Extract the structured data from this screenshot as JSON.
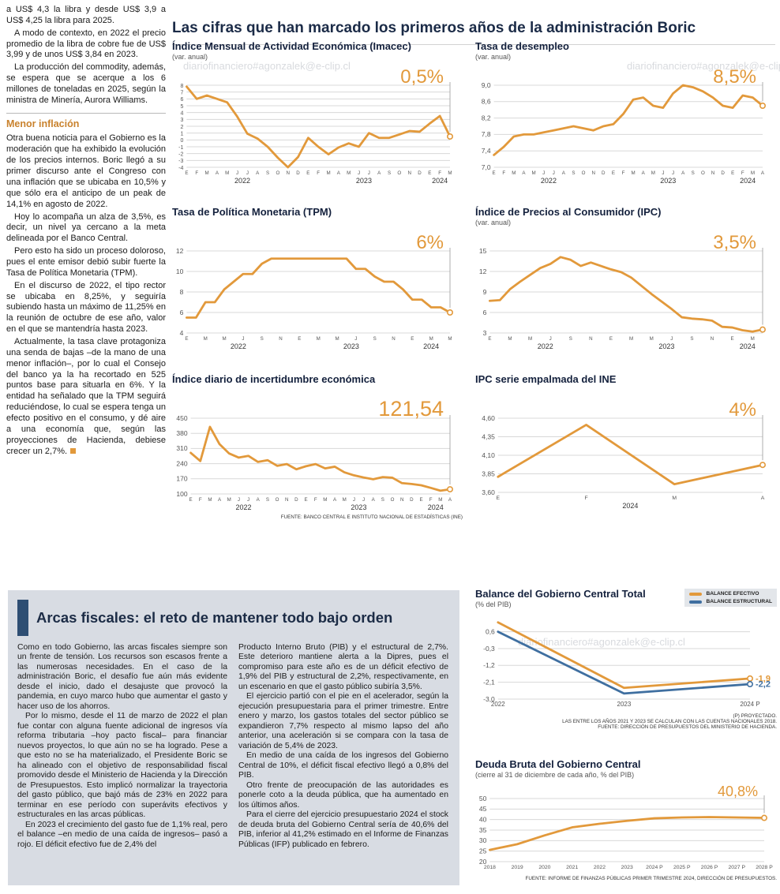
{
  "page": {
    "headline": "Las cifras que han marcado los primeros años de la administración Boric",
    "watermark": "diariofinanciero#agonzalek@e-clip.cl"
  },
  "left_column": {
    "intro_paragraphs": [
      "a US$ 4,3 la libra y desde US$ 3,9 a US$ 4,25 la libra para 2025.",
      "A modo de contexto, en 2022 el precio promedio de la libra de cobre fue de US$ 3,99 y de unos US$ 3,84 en 2023.",
      "La producción del commodity, además, se espera que se acerque a los 6 millones de toneladas en 2025, según la ministra de Minería, Aurora Williams."
    ],
    "subhead": "Menor inflación",
    "body_paragraphs": [
      "Otra buena noticia para el Gobierno es la moderación que ha exhibido la evolución de los precios internos. Boric llegó a su primer discurso ante el Congreso con una inflación que se ubicaba en 10,5% y que sólo era el anticipo de un peak de 14,1% en agosto de 2022.",
      "Hoy lo acompaña un alza de 3,5%, es decir, un nivel ya cercano a la meta delineada por el Banco Central.",
      "Pero esto ha sido un proceso doloroso, pues el ente emisor debió subir fuerte la Tasa de Política Monetaria (TPM).",
      "En el discurso de 2022, el tipo rector se ubicaba en 8,25%, y seguiría subiendo hasta un máximo de 11,25% en la reunión de octubre de ese año, valor en el que se mantendría hasta 2023.",
      "Actualmente, la tasa clave protagoniza una senda de bajas –de la mano de una menor inflación–, por lo cual el Consejo del banco ya la ha recortado en 525 puntos base para situarla en 6%. Y la entidad ha señalado que la TPM seguirá reduciéndose, lo cual se espera tenga un efecto positivo en el consumo, y dé aire a una economía que, según las proyecciones de Hacienda, debiese crecer un 2,7%."
    ]
  },
  "fiscal": {
    "headline": "Arcas fiscales: el reto de mantener todo bajo orden",
    "col1_paragraphs": [
      "Como en todo Gobierno, las arcas fiscales siempre son un frente de tensión. Los recursos son escasos frente a las numerosas necesidades. En el caso de la administración Boric, el desafío fue aún más evidente desde el inicio, dado el desajuste que provocó la pandemia, en cuyo marco hubo que aumentar el gasto y hacer uso de los ahorros.",
      "Por lo mismo, desde el 11 de marzo de 2022 el plan fue contar con alguna fuente adicional de ingresos vía reforma tributaria –hoy pacto fiscal– para financiar nuevos proyectos, lo que aún no se ha logrado. Pese a que esto no se ha materializado, el Presidente Boric se ha alineado con el objetivo de responsabilidad fiscal promovido desde el Ministerio de Hacienda y la Dirección de Presupuestos. Esto implicó normalizar la trayectoria del gasto público, que bajó más de 23% en 2022 para terminar en ese período con superávits efectivos y estructurales en las arcas públicas.",
      "En 2023 el crecimiento del gasto fue de 1,1% real, pero el balance –en medio de una caída de ingresos– pasó a rojo. El déficit efectivo fue de 2,4% del"
    ],
    "col2_paragraphs": [
      "Producto Interno Bruto (PIB) y el estructural de 2,7%. Este deterioro mantiene alerta a la Dipres, pues el compromiso para este año es de un déficit efectivo de 1,9% del PIB y estructural de 2,2%, respectivamente, en un escenario en que el gasto público subiría 3,5%.",
      "El ejercicio partió con el pie en el acelerador, según la ejecución presupuestaria para el primer trimestre. Entre enero y marzo, los gastos totales del sector público se expandieron 7,7% respecto al mismo lapso del año anterior, una aceleración si se compara con la tasa de variación de 5,4% de 2023.",
      "En medio de una caída de los ingresos del Gobierno Central de 10%, el déficit fiscal efectivo llegó a 0,8% del PIB.",
      "Otro frente de preocupación de las autoridades es ponerle coto a la deuda pública, que ha aumentado en los últimos años.",
      "Para el cierre del ejercicio presupuestario 2024 el stock de deuda bruta del Gobierno Central sería de 40,6% del PIB, inferior al 41,2% estimado en el Informe de Finanzas Públicas (IFP) publicado en febrero."
    ]
  },
  "chart_data": [
    {
      "type": "line",
      "title": "Índice Mensual de Actividad Económica (Imacec)",
      "subtitle": "(var. anual)",
      "annotation": "0,5%",
      "annotation_size": 24,
      "annotation_color": "#E2993B",
      "ylim": [
        -4,
        8
      ],
      "yticks": [
        {
          "v": 8,
          "label": "8"
        },
        {
          "v": 7,
          "label": "7"
        },
        {
          "v": 6,
          "label": "6"
        },
        {
          "v": 5,
          "label": "5"
        },
        {
          "v": 4,
          "label": "4"
        },
        {
          "v": 3,
          "label": "3"
        },
        {
          "v": 2,
          "label": "2"
        },
        {
          "v": 1,
          "label": "1"
        },
        {
          "v": 0,
          "label": "0"
        },
        {
          "v": -1,
          "label": "-1"
        },
        {
          "v": -2,
          "label": "-2"
        },
        {
          "v": -3,
          "label": "-3"
        },
        {
          "v": -4,
          "label": "-4"
        }
      ],
      "x_labels": [
        "E",
        "F",
        "M",
        "A",
        "M",
        "J",
        "J",
        "A",
        "S",
        "O",
        "N",
        "D",
        "E",
        "F",
        "M",
        "A",
        "M",
        "J",
        "J",
        "A",
        "S",
        "O",
        "N",
        "D",
        "E",
        "F",
        "M"
      ],
      "year_ticks": [
        {
          "label": "2022",
          "i": 5.5
        },
        {
          "label": "2023",
          "i": 17.5
        },
        {
          "label": "2024",
          "i": 25
        }
      ],
      "series": [
        {
          "name": "Imacec",
          "color": "#E2993B",
          "values": [
            7.8,
            6.0,
            6.5,
            6.0,
            5.5,
            3.4,
            0.9,
            0.2,
            -1.0,
            -2.6,
            -4.0,
            -2.5,
            0.3,
            -1.0,
            -2.1,
            -1.1,
            -0.5,
            -1.0,
            1.0,
            0.3,
            0.3,
            0.8,
            1.3,
            1.2,
            2.4,
            3.5,
            0.5
          ]
        }
      ]
    },
    {
      "type": "line",
      "title": "Tasa de desempleo",
      "subtitle": "(var. anual)",
      "annotation": "8,5%",
      "annotation_size": 24,
      "annotation_color": "#E2993B",
      "ylim": [
        7.0,
        9.0
      ],
      "yticks": [
        {
          "v": 9.0,
          "label": "9,0"
        },
        {
          "v": 8.6,
          "label": "8,6"
        },
        {
          "v": 8.2,
          "label": "8,2"
        },
        {
          "v": 7.8,
          "label": "7,8"
        },
        {
          "v": 7.4,
          "label": "7,4"
        },
        {
          "v": 7.0,
          "label": "7,0"
        }
      ],
      "x_labels": [
        "E",
        "F",
        "M",
        "A",
        "M",
        "J",
        "J",
        "A",
        "S",
        "O",
        "N",
        "D",
        "E",
        "F",
        "M",
        "A",
        "M",
        "J",
        "J",
        "A",
        "S",
        "O",
        "N",
        "D",
        "E",
        "F",
        "M",
        "A"
      ],
      "year_ticks": [
        {
          "label": "2022",
          "i": 5.5
        },
        {
          "label": "2023",
          "i": 17.5
        },
        {
          "label": "2024",
          "i": 25.5
        }
      ],
      "series": [
        {
          "name": "Desempleo",
          "color": "#E2993B",
          "values": [
            7.3,
            7.5,
            7.75,
            7.8,
            7.8,
            7.85,
            7.9,
            7.95,
            8.0,
            7.95,
            7.9,
            8.0,
            8.05,
            8.3,
            8.65,
            8.7,
            8.5,
            8.45,
            8.8,
            9.0,
            8.95,
            8.85,
            8.7,
            8.5,
            8.45,
            8.75,
            8.7,
            8.5
          ]
        }
      ]
    },
    {
      "type": "line",
      "title": "Tasa de Política Monetaria (TPM)",
      "subtitle": "",
      "annotation": "6%",
      "annotation_size": 24,
      "annotation_color": "#E2993B",
      "ylim": [
        4,
        12
      ],
      "yticks": [
        {
          "v": 12,
          "label": "12"
        },
        {
          "v": 10,
          "label": "10"
        },
        {
          "v": 8,
          "label": "8"
        },
        {
          "v": 6,
          "label": "6"
        },
        {
          "v": 4,
          "label": "4"
        }
      ],
      "x_labels": [
        "E",
        "",
        "M",
        "",
        "M",
        "",
        "J",
        "",
        "S",
        "",
        "N",
        "",
        "E",
        "",
        "M",
        "",
        "M",
        "",
        "J",
        "",
        "S",
        "",
        "N",
        "",
        "E",
        "",
        "M",
        "",
        "M"
      ],
      "year_ticks": [
        {
          "label": "2022",
          "i": 5.5
        },
        {
          "label": "2023",
          "i": 17.5
        },
        {
          "label": "2024",
          "i": 26
        }
      ],
      "series": [
        {
          "name": "TPM",
          "color": "#E2993B",
          "values": [
            5.5,
            5.5,
            7.0,
            7.0,
            8.25,
            9.0,
            9.75,
            9.75,
            10.75,
            11.25,
            11.25,
            11.25,
            11.25,
            11.25,
            11.25,
            11.25,
            11.25,
            11.25,
            10.25,
            10.25,
            9.5,
            9.0,
            9.0,
            8.25,
            7.25,
            7.25,
            6.5,
            6.5,
            6.0
          ]
        }
      ]
    },
    {
      "type": "line",
      "title": "Índice de Precios al Consumidor (IPC)",
      "subtitle": "(var. anual)",
      "annotation": "3,5%",
      "annotation_size": 24,
      "annotation_color": "#E2993B",
      "ylim": [
        3,
        15
      ],
      "yticks": [
        {
          "v": 15,
          "label": "15"
        },
        {
          "v": 12,
          "label": "12"
        },
        {
          "v": 9,
          "label": "9"
        },
        {
          "v": 6,
          "label": "6"
        },
        {
          "v": 3,
          "label": "3"
        }
      ],
      "x_labels": [
        "E",
        "",
        "M",
        "",
        "M",
        "",
        "J",
        "",
        "S",
        "",
        "N",
        "",
        "E",
        "",
        "M",
        "",
        "M",
        "",
        "J",
        "",
        "S",
        "",
        "N",
        "",
        "E",
        "",
        "M",
        ""
      ],
      "year_ticks": [
        {
          "label": "2022",
          "i": 5.5
        },
        {
          "label": "2023",
          "i": 17.5
        },
        {
          "label": "2024",
          "i": 25.5
        }
      ],
      "series": [
        {
          "name": "IPC",
          "color": "#E2993B",
          "values": [
            7.7,
            7.8,
            9.4,
            10.5,
            11.5,
            12.5,
            13.1,
            14.1,
            13.7,
            12.8,
            13.3,
            12.8,
            12.3,
            11.9,
            11.1,
            9.9,
            8.7,
            7.6,
            6.5,
            5.3,
            5.1,
            5.0,
            4.8,
            3.9,
            3.8,
            3.4,
            3.2,
            3.5
          ]
        }
      ]
    },
    {
      "type": "line",
      "title": "Índice diario de incertidumbre económica",
      "subtitle": "",
      "annotation": "121,54",
      "annotation_size": 27,
      "annotation_color": "#E2993B",
      "source": "FUENTE: BANCO CENTRAL E INSTITUTO NACIONAL DE ESTADÍSTICAS (INE)",
      "ylim": [
        100,
        450
      ],
      "yticks": [
        {
          "v": 450,
          "label": "450"
        },
        {
          "v": 380,
          "label": "380"
        },
        {
          "v": 310,
          "label": "310"
        },
        {
          "v": 240,
          "label": "240"
        },
        {
          "v": 170,
          "label": "170"
        },
        {
          "v": 100,
          "label": "100"
        }
      ],
      "x_labels": [
        "E",
        "F",
        "M",
        "A",
        "M",
        "J",
        "J",
        "A",
        "S",
        "O",
        "N",
        "D",
        "E",
        "F",
        "M",
        "A",
        "M",
        "J",
        "J",
        "A",
        "S",
        "O",
        "N",
        "D",
        "E",
        "F",
        "M",
        "A"
      ],
      "year_ticks": [
        {
          "label": "2022",
          "i": 5.5
        },
        {
          "label": "2023",
          "i": 17.5
        },
        {
          "label": "2024",
          "i": 25.5
        }
      ],
      "series": [
        {
          "name": "Incertidumbre",
          "color": "#E2993B",
          "values": [
            290,
            252,
            410,
            330,
            287,
            268,
            276,
            248,
            256,
            230,
            238,
            214,
            228,
            238,
            218,
            226,
            200,
            186,
            176,
            168,
            178,
            175,
            150,
            146,
            140,
            128,
            115,
            121.54
          ]
        }
      ]
    },
    {
      "type": "line",
      "title": "IPC serie empalmada del INE",
      "subtitle": "",
      "annotation": "4%",
      "annotation_size": 24,
      "annotation_color": "#E2993B",
      "ylim": [
        3.6,
        4.6
      ],
      "yticks": [
        {
          "v": 4.6,
          "label": "4,60"
        },
        {
          "v": 4.35,
          "label": "4,35"
        },
        {
          "v": 4.1,
          "label": "4,10"
        },
        {
          "v": 3.85,
          "label": "3,85"
        },
        {
          "v": 3.6,
          "label": "3,60"
        }
      ],
      "x_labels": [
        "E",
        "F",
        "M",
        "A"
      ],
      "year_ticks": [
        {
          "label": "2024",
          "i": 1.5
        }
      ],
      "series": [
        {
          "name": "IPC empalmado",
          "color": "#E2993B",
          "values": [
            3.81,
            4.51,
            3.71,
            3.97
          ]
        }
      ]
    },
    {
      "type": "line",
      "title": "Balance del Gobierno Central Total",
      "subtitle": "(% del PIB)",
      "sources": [
        "(P) PROYECTADO.",
        "LAS ENTRE LOS AÑOS 2021 Y 2023 SE CALCULAN  CON LAS CUENTAS NACIONALES 2018.",
        "FUENTE: DIRECCIÓN DE PRESUPUESTOS DEL MINISTERIO DE HACIENDA."
      ],
      "legend": [
        {
          "label": "BALANCE EFECTIVO",
          "color": "#E2993B"
        },
        {
          "label": "BALANCE ESTRUCTURAL",
          "color": "#3F6FA0"
        }
      ],
      "ylim": [
        -3.0,
        1.3
      ],
      "yticks": [
        {
          "v": 0.6,
          "label": "0,6"
        },
        {
          "v": -0.3,
          "label": "-0,3"
        },
        {
          "v": -1.2,
          "label": "-1,2"
        },
        {
          "v": -2.1,
          "label": "-2,1"
        },
        {
          "v": -3.0,
          "label": "-3,0"
        }
      ],
      "x_labels": [
        "2022",
        "2023",
        "2024 P"
      ],
      "year_ticks": [],
      "series": [
        {
          "name": "Balance efectivo",
          "color": "#E2993B",
          "end_label": "-1,9",
          "values": [
            1.1,
            -2.4,
            -1.9
          ]
        },
        {
          "name": "Balance estructural",
          "color": "#3F6FA0",
          "end_label": "-2,2",
          "values": [
            0.6,
            -2.7,
            -2.2
          ]
        }
      ]
    },
    {
      "type": "line",
      "title": "Deuda Bruta del Gobierno Central",
      "subtitle": "(cierre al 31 de diciembre de cada año, % del PIB)",
      "annotation": "40,8%",
      "annotation_size": 18,
      "annotation_color": "#E2993B",
      "source": "FUENTE: INFORME DE FINANZAS PÚBLICAS PRIMER TRIMESTRE 2024, DIRECCIÓN DE PRESUPUESTOS.",
      "ylim": [
        20,
        50
      ],
      "yticks": [
        {
          "v": 50,
          "label": "50"
        },
        {
          "v": 45,
          "label": "45"
        },
        {
          "v": 40,
          "label": "40"
        },
        {
          "v": 35,
          "label": "35"
        },
        {
          "v": 30,
          "label": "30"
        },
        {
          "v": 25,
          "label": "25"
        },
        {
          "v": 20,
          "label": "20"
        }
      ],
      "x_labels": [
        "2018",
        "2019",
        "2020",
        "2021",
        "2022",
        "2023",
        "2024 P",
        "2025 P",
        "2026 P",
        "2027 P",
        "2028 P"
      ],
      "year_ticks": [],
      "series": [
        {
          "name": "Deuda bruta",
          "color": "#E2993B",
          "values": [
            25.6,
            28.3,
            32.5,
            36.3,
            38.0,
            39.4,
            40.6,
            41.0,
            41.2,
            41.0,
            40.8
          ]
        }
      ]
    }
  ]
}
